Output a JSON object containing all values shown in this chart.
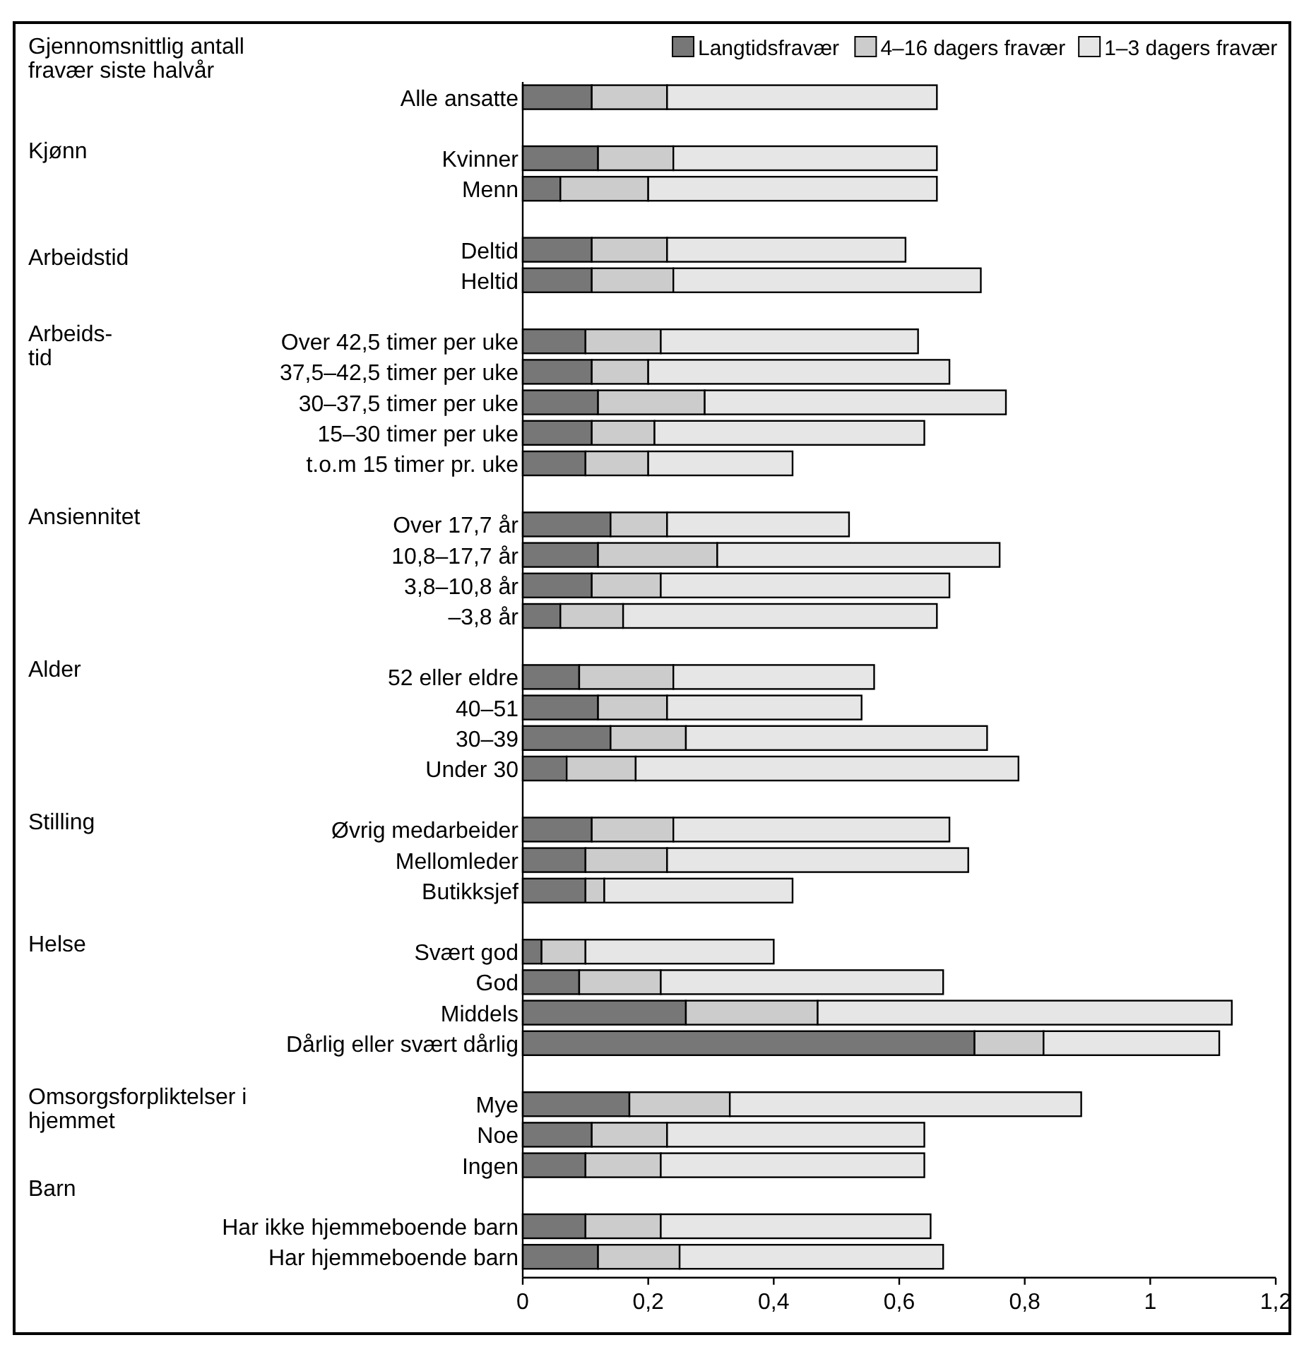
{
  "chart_data": {
    "type": "bar",
    "orientation": "horizontal",
    "stacked": true,
    "title": "Gjennomsnittlig antall\nfravær siste halvår",
    "categories": [
      "Alle ansatte",
      "Kvinner",
      "Menn",
      "Deltid",
      "Heltid",
      "Over 42,5 timer per uke",
      "37,5–42,5 timer per uke",
      "30–37,5 timer per uke",
      "15–30 timer per uke",
      "t.o.m 15 timer pr. uke",
      "Over 17,7 år",
      "10,8–17,7 år",
      "3,8–10,8 år",
      "–3,8 år",
      "52 eller eldre",
      "40–51",
      "30–39",
      "Under 30",
      "Øvrig medarbeider",
      "Mellomleder",
      "Butikksjef",
      "Svært god",
      "God",
      "Middels",
      "Dårlig eller svært dårlig",
      "Mye",
      "Noe",
      "Ingen",
      "Har ikke hjemmeboende barn",
      "Har hjemmeboende barn"
    ],
    "series": [
      {
        "name": "Langtidsfravær",
        "color": "#777777",
        "values": [
          0.11,
          0.12,
          0.06,
          0.11,
          0.11,
          0.1,
          0.11,
          0.12,
          0.11,
          0.1,
          0.14,
          0.12,
          0.11,
          0.06,
          0.09,
          0.12,
          0.14,
          0.07,
          0.11,
          0.1,
          0.1,
          0.03,
          0.09,
          0.26,
          0.72,
          0.17,
          0.11,
          0.1,
          0.1,
          0.12
        ]
      },
      {
        "name": "4–16 dagers fravær",
        "color": "#cccccc",
        "values": [
          0.12,
          0.12,
          0.14,
          0.12,
          0.13,
          0.12,
          0.09,
          0.17,
          0.1,
          0.1,
          0.09,
          0.19,
          0.11,
          0.1,
          0.15,
          0.11,
          0.12,
          0.11,
          0.13,
          0.13,
          0.03,
          0.07,
          0.13,
          0.21,
          0.11,
          0.16,
          0.12,
          0.12,
          0.12,
          0.13
        ]
      },
      {
        "name": "1–3 dagers fravær",
        "color": "#e6e6e6",
        "values": [
          0.43,
          0.42,
          0.46,
          0.38,
          0.49,
          0.41,
          0.48,
          0.48,
          0.43,
          0.23,
          0.29,
          0.45,
          0.46,
          0.5,
          0.32,
          0.31,
          0.48,
          0.61,
          0.44,
          0.48,
          0.3,
          0.3,
          0.45,
          0.66,
          0.28,
          0.56,
          0.41,
          0.42,
          0.43,
          0.42
        ]
      }
    ],
    "xlim": [
      0,
      1.2
    ],
    "xticks": [
      0,
      {
        "value": 0.2,
        "label": "0,2"
      },
      {
        "value": 0.4,
        "label": "0,4"
      },
      {
        "value": 0.6,
        "label": "0,6"
      },
      {
        "value": 0.8,
        "label": "0,8"
      },
      1,
      {
        "value": 1.2,
        "label": "1,2"
      }
    ],
    "legend": "top",
    "grid": false,
    "annotations": [
      "Kjønn",
      "Arbeidstid",
      "Arbeids-\ntid",
      "Ansiennitet",
      "Alder",
      "Stilling",
      "Helse",
      "Omsorgsforpliktelser i\nhjemmet",
      "Barn"
    ]
  }
}
